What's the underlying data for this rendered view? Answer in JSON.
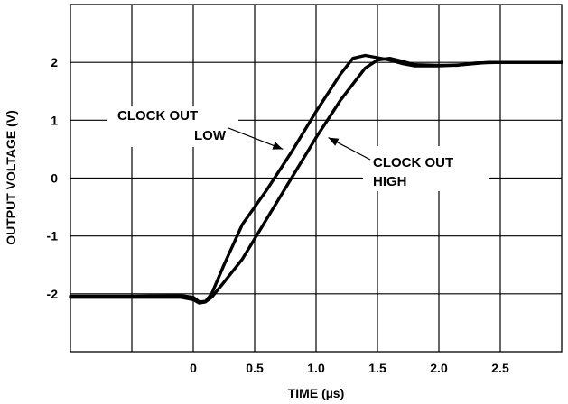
{
  "chart_data": {
    "type": "line",
    "title": "",
    "xlabel": "TIME (µs)",
    "ylabel": "OUTPUT VOLTAGE (V)",
    "xlim": [
      -1.0,
      3.0
    ],
    "ylim": [
      -3.0,
      3.0
    ],
    "x_ticks": [
      {
        "value": 0,
        "label": "0"
      },
      {
        "value": 0.5,
        "label": "0.5"
      },
      {
        "value": 1.0,
        "label": "1.0"
      },
      {
        "value": 1.5,
        "label": "1.5"
      },
      {
        "value": 2.0,
        "label": "2.0"
      },
      {
        "value": 2.5,
        "label": "2.5"
      }
    ],
    "y_ticks": [
      {
        "value": 2,
        "label": "2"
      },
      {
        "value": 1,
        "label": "1"
      },
      {
        "value": 0,
        "label": "0"
      },
      {
        "value": -1,
        "label": "-1"
      },
      {
        "value": -2,
        "label": "-2"
      }
    ],
    "grid": true,
    "series": [
      {
        "name": "CLOCK OUT LOW",
        "color": "#000000",
        "points": [
          [
            -1.0,
            -2.04
          ],
          [
            -0.5,
            -2.04
          ],
          [
            -0.1,
            -2.03
          ],
          [
            0.0,
            -2.06
          ],
          [
            0.05,
            -2.14
          ],
          [
            0.1,
            -2.13
          ],
          [
            0.15,
            -2.0
          ],
          [
            0.25,
            -1.5
          ],
          [
            0.4,
            -0.8
          ],
          [
            0.6,
            -0.2
          ],
          [
            0.8,
            0.45
          ],
          [
            1.0,
            1.15
          ],
          [
            1.2,
            1.8
          ],
          [
            1.3,
            2.07
          ],
          [
            1.4,
            2.12
          ],
          [
            1.5,
            2.08
          ],
          [
            1.6,
            2.04
          ],
          [
            1.7,
            1.98
          ],
          [
            1.8,
            1.94
          ],
          [
            2.0,
            1.94
          ],
          [
            2.2,
            1.96
          ],
          [
            2.4,
            2.0
          ],
          [
            3.0,
            2.0
          ]
        ]
      },
      {
        "name": "CLOCK OUT HIGH",
        "color": "#000000",
        "points": [
          [
            -1.0,
            -2.06
          ],
          [
            -0.5,
            -2.06
          ],
          [
            -0.1,
            -2.06
          ],
          [
            0.0,
            -2.1
          ],
          [
            0.05,
            -2.16
          ],
          [
            0.1,
            -2.14
          ],
          [
            0.15,
            -2.06
          ],
          [
            0.25,
            -1.8
          ],
          [
            0.4,
            -1.4
          ],
          [
            0.6,
            -0.7
          ],
          [
            0.8,
            0.0
          ],
          [
            1.0,
            0.7
          ],
          [
            1.2,
            1.35
          ],
          [
            1.4,
            1.9
          ],
          [
            1.5,
            2.04
          ],
          [
            1.6,
            2.07
          ],
          [
            1.7,
            2.02
          ],
          [
            1.8,
            1.96
          ],
          [
            2.0,
            1.95
          ],
          [
            2.15,
            1.95
          ],
          [
            2.3,
            1.99
          ],
          [
            2.5,
            2.0
          ],
          [
            3.0,
            2.0
          ]
        ]
      }
    ],
    "annotations": [
      {
        "lines": [
          "CLOCK OUT",
          "LOW"
        ],
        "target_series": "CLOCK OUT LOW"
      },
      {
        "lines": [
          "CLOCK OUT",
          "HIGH"
        ],
        "target_series": "CLOCK OUT HIGH"
      }
    ]
  }
}
